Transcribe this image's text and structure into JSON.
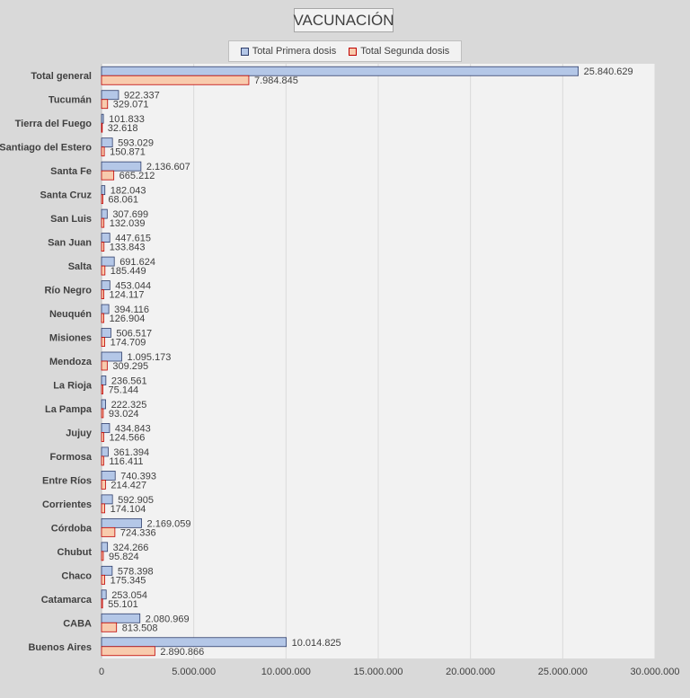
{
  "chart_data": {
    "type": "bar",
    "orientation": "horizontal",
    "title": "VACUNACIÓN",
    "categories": [
      "Total general",
      "Tucumán",
      "Tierra del Fuego",
      "Santiago del Estero",
      "Santa Fe",
      "Santa Cruz",
      "San Luis",
      "San Juan",
      "Salta",
      "Río Negro",
      "Neuquén",
      "Misiones",
      "Mendoza",
      "La Rioja",
      "La Pampa",
      "Jujuy",
      "Formosa",
      "Entre Ríos",
      "Corrientes",
      "Córdoba",
      "Chubut",
      "Chaco",
      "Catamarca",
      "CABA",
      "Buenos Aires"
    ],
    "series": [
      {
        "name": "Total Primera dosis",
        "color": "#b4c7e7",
        "border": "#2f3e6b",
        "values": [
          25840629,
          922337,
          101833,
          593029,
          2136607,
          182043,
          307699,
          447615,
          691624,
          453044,
          394116,
          506517,
          1095173,
          236561,
          222325,
          434843,
          361394,
          740393,
          592905,
          2169059,
          324266,
          578398,
          253054,
          2080969,
          10014825
        ],
        "labels": [
          "25.840.629",
          "922.337",
          "101.833",
          "593.029",
          "2.136.607",
          "182.043",
          "307.699",
          "447.615",
          "691.624",
          "453.044",
          "394.116",
          "506.517",
          "1.095.173",
          "236.561",
          "222.325",
          "434.843",
          "361.394",
          "740.393",
          "592.905",
          "2.169.059",
          "324.266",
          "578.398",
          "253.054",
          "2.080.969",
          "10.014.825"
        ]
      },
      {
        "name": "Total Segunda dosis",
        "color": "#f8cbad",
        "border": "#c00000",
        "values": [
          7984845,
          329071,
          32618,
          150871,
          665212,
          68061,
          132039,
          133843,
          185449,
          124117,
          126904,
          174709,
          309295,
          75144,
          93024,
          124566,
          116411,
          214427,
          174104,
          724336,
          95824,
          175345,
          55101,
          813508,
          2890866
        ],
        "labels": [
          "7.984.845",
          "329.071",
          "32.618",
          "150.871",
          "665.212",
          "68.061",
          "132.039",
          "133.843",
          "185.449",
          "124.117",
          "126.904",
          "174.709",
          "309.295",
          "75.144",
          "93.024",
          "124.566",
          "116.411",
          "214.427",
          "174.104",
          "724.336",
          "95.824",
          "175.345",
          "55.101",
          "813.508",
          "2.890.866"
        ]
      }
    ],
    "xlim": [
      0,
      30000000
    ],
    "x_ticks": [
      0,
      5000000,
      10000000,
      15000000,
      20000000,
      25000000,
      30000000
    ],
    "x_tick_labels": [
      "0",
      "5.000.000",
      "10.000.000",
      "15.000.000",
      "20.000.000",
      "25.000.000",
      "30.000.000"
    ],
    "grid": true,
    "legend_position": "top"
  }
}
